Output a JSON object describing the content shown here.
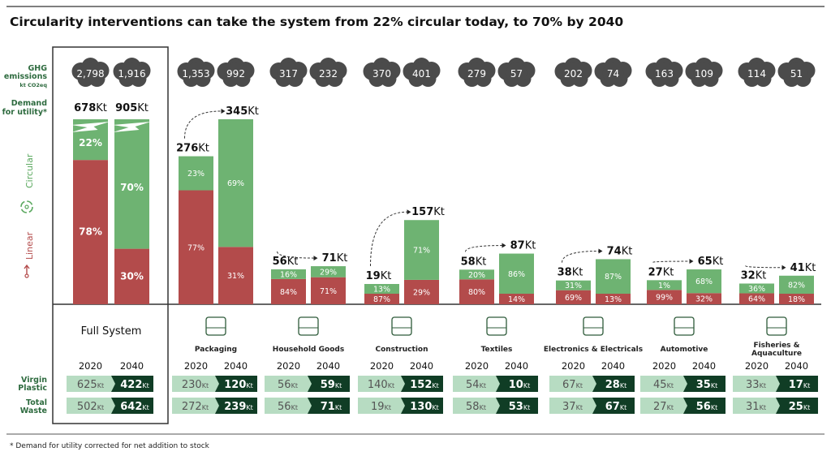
{
  "title": "Circularity interventions can take the system from 22% circular today, to 70% by 2040",
  "footnote": "* Demand for utility corrected for net addition to stock",
  "row_labels": {
    "ghg_1": "GHG",
    "ghg_2": "emissions",
    "ghg_unit": "kt CO2eq",
    "demand_1": "Demand",
    "demand_2": "for utility*",
    "virgin_1": "Virgin",
    "virgin_2": "Plastic",
    "waste_1": "Total",
    "waste_2": "Waste",
    "circular": "Circular",
    "linear": "Linear"
  },
  "unit": "Kt",
  "years": [
    "2020",
    "2040"
  ],
  "colors": {
    "linear": "#b34b4b",
    "circular": "#6eb372",
    "dark": "#103d25",
    "light": "#b7dcc2",
    "cloud": "#4b4b4b",
    "label_green": "#2e6b3f"
  },
  "chart_data": {
    "type": "bar",
    "stacked": true,
    "categories": [
      "Full System",
      "Packaging",
      "Household Goods",
      "Construction",
      "Textiles",
      "Electronics & Electricals",
      "Automotive",
      "Fisheries & Aquaculture"
    ],
    "icons": [
      "",
      "bottle-carton-icon",
      "spray-toothbrush-icon",
      "crane-icon",
      "jacket-shoe-icon",
      "laptop-camera-icon",
      "car-icon",
      "fish-tank-icon"
    ],
    "groups": [
      {
        "label": "Full System",
        "demand": [
          678,
          905
        ],
        "circular_pct": [
          22,
          70
        ],
        "linear_pct": [
          78,
          30
        ],
        "ghg": [
          "2,798",
          "1,916"
        ],
        "virgin": [
          625,
          422
        ],
        "waste": [
          502,
          642
        ],
        "broken_axis": true
      },
      {
        "label": "Packaging",
        "demand": [
          276,
          345
        ],
        "circular_pct": [
          23,
          69
        ],
        "linear_pct": [
          77,
          31
        ],
        "ghg": [
          "1,353",
          "992"
        ],
        "virgin": [
          230,
          120
        ],
        "waste": [
          272,
          239
        ]
      },
      {
        "label": "Household Goods",
        "demand": [
          56,
          71
        ],
        "circular_pct": [
          16,
          29
        ],
        "linear_pct": [
          84,
          71
        ],
        "ghg": [
          "317",
          "232"
        ],
        "virgin": [
          56,
          59
        ],
        "waste": [
          56,
          71
        ]
      },
      {
        "label": "Construction",
        "demand": [
          19,
          157
        ],
        "circular_pct": [
          13,
          71
        ],
        "linear_pct": [
          87,
          29
        ],
        "ghg": [
          "370",
          "401"
        ],
        "virgin": [
          140,
          152
        ],
        "waste": [
          19,
          130
        ]
      },
      {
        "label": "Textiles",
        "demand": [
          58,
          87
        ],
        "circular_pct": [
          20,
          86
        ],
        "linear_pct": [
          80,
          14
        ],
        "ghg": [
          "279",
          "57"
        ],
        "virgin": [
          54,
          10
        ],
        "waste": [
          58,
          53
        ]
      },
      {
        "label": "Electronics & Electricals",
        "demand": [
          38,
          74
        ],
        "circular_pct": [
          31,
          87
        ],
        "linear_pct": [
          69,
          13
        ],
        "ghg": [
          "202",
          "74"
        ],
        "virgin": [
          67,
          28
        ],
        "waste": [
          37,
          67
        ]
      },
      {
        "label": "Automotive",
        "demand": [
          27,
          65
        ],
        "circular_pct": [
          1,
          68
        ],
        "linear_pct": [
          99,
          32
        ],
        "ghg": [
          "163",
          "109"
        ],
        "virgin": [
          45,
          35
        ],
        "waste": [
          27,
          56
        ]
      },
      {
        "label": "Fisheries & Aquaculture",
        "label_lines": [
          "Fisheries &",
          "Aquaculture"
        ],
        "demand": [
          32,
          41
        ],
        "circular_pct": [
          36,
          82
        ],
        "linear_pct": [
          64,
          18
        ],
        "ghg": [
          "114",
          "51"
        ],
        "virgin": [
          33,
          17
        ],
        "waste": [
          31,
          25
        ]
      }
    ]
  }
}
